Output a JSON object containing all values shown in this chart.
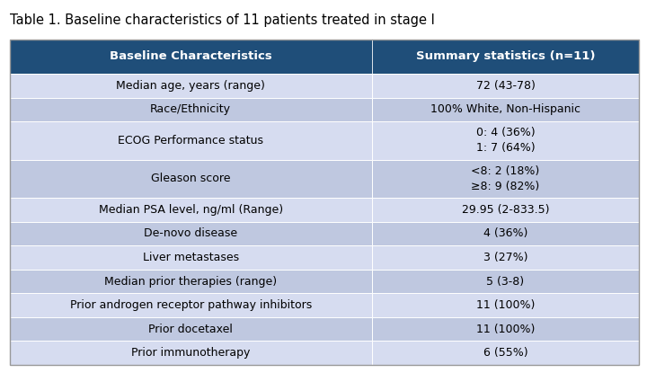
{
  "title": "Table 1. Baseline characteristics of 11 patients treated in stage I",
  "header": [
    "Baseline Characteristics",
    "Summary statistics (n=11)"
  ],
  "header_bg": "#1F4E79",
  "header_text_color": "#FFFFFF",
  "rows": [
    [
      "Median age, years (range)",
      "72 (43-78)"
    ],
    [
      "Race/Ethnicity",
      "100% White, Non-Hispanic"
    ],
    [
      "ECOG Performance status",
      "0: 4 (36%)\n1: 7 (64%)"
    ],
    [
      "Gleason score",
      "<8: 2 (18%)\n≥8: 9 (82%)"
    ],
    [
      "Median PSA level, ng/ml (Range)",
      "29.95 (2-833.5)"
    ],
    [
      "De-novo disease",
      "4 (36%)"
    ],
    [
      "Liver metastases",
      "3 (27%)"
    ],
    [
      "Median prior therapies (range)",
      "5 (3-8)"
    ],
    [
      "Prior androgen receptor pathway inhibitors",
      "11 (100%)"
    ],
    [
      "Prior docetaxel",
      "11 (100%)"
    ],
    [
      "Prior immunotherapy",
      "6 (55%)"
    ]
  ],
  "row_colors_even": "#D6DCF0",
  "row_colors_odd": "#BFC8E0",
  "fig_bg": "#FFFFFF",
  "title_fontsize": 10.5,
  "header_fontsize": 9.5,
  "cell_fontsize": 9,
  "col_split": 0.575
}
